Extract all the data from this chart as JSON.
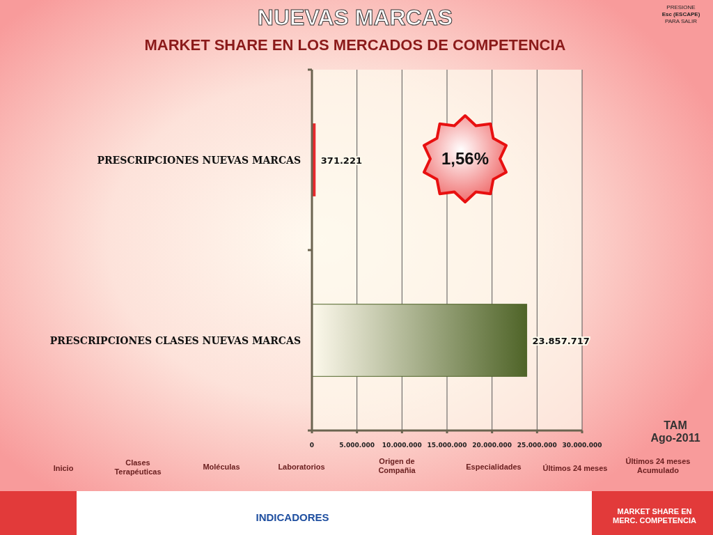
{
  "chart_data": {
    "type": "bar",
    "orientation": "horizontal",
    "title": "NUEVAS MARCAS",
    "subtitle": "MARKET SHARE EN LOS MERCADOS DE COMPETENCIA",
    "categories": [
      "PRESCRIPCIONES NUEVAS MARCAS",
      "PRESCRIPCIONES CLASES NUEVAS MARCAS"
    ],
    "values": [
      371221,
      23857717
    ],
    "colors": [
      "#e8262a",
      "#4f6428"
    ],
    "value_labels": [
      "371.221",
      "23.857.717"
    ],
    "xlim": [
      0,
      30000000
    ],
    "xticks": [
      0,
      {
        "value": 5000000,
        "label": "5.000.000"
      },
      {
        "value": 10000000,
        "label": "10.000.000"
      },
      {
        "value": 15000000,
        "label": "15.000.000"
      },
      {
        "value": 20000000,
        "label": "20.000.000"
      },
      {
        "value": 25000000,
        "label": "25.000.000"
      },
      {
        "value": 30000000,
        "label": "30.000.000"
      }
    ],
    "grid": "x",
    "annotations": [
      "1,56%",
      "TAM",
      "Ago-2011",
      "PRESIONE",
      "Esc (ESCAPE)",
      "PARA SALIR",
      "Inicio",
      "Clases Terapéuticas",
      "Moléculas",
      "Laboratorios",
      "Origen de Compañia",
      "Especialidades",
      "Últimos 24 meses",
      "Últimos 24 meses Acumulado",
      "INDICADORES",
      "MARKET SHARE EN MERC. COMPETENCIA"
    ]
  }
}
